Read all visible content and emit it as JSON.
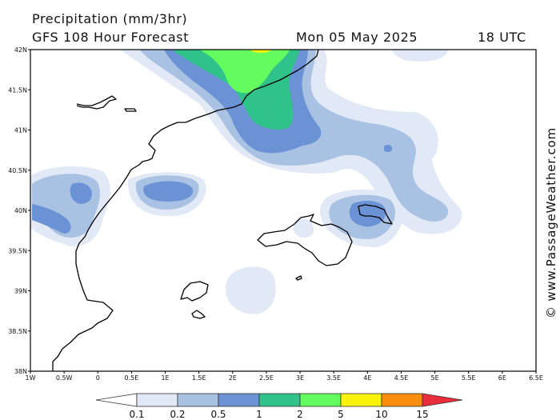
{
  "header": {
    "title": "Precipitation (mm/3hr)",
    "subtitle": "GFS 108 Hour Forecast",
    "date": "Mon 05 May 2025",
    "hour": "18 UTC"
  },
  "credit": "© www.PassageWeather.com",
  "map": {
    "lat_labels": [
      "42N",
      "41.5N",
      "41N",
      "40.5N",
      "40N",
      "39.5N",
      "39N",
      "38.5N",
      "38N"
    ],
    "lon_labels": [
      "1W",
      "0.5W",
      "0",
      "0.5E",
      "1E",
      "1.5E",
      "2E",
      "2.5E",
      "3E",
      "3.5E",
      "4E",
      "4.5E",
      "5E",
      "5.5E",
      "6E",
      "6.5E"
    ],
    "lat_range": [
      38,
      42
    ],
    "lon_range": [
      -1,
      6.5
    ]
  },
  "legend": {
    "levels": [
      "0.1",
      "0.2",
      "0.5",
      "1",
      "2",
      "5",
      "10",
      "15"
    ],
    "colors": [
      "#ffffff",
      "#e1e9f6",
      "#a9c1e2",
      "#6a92d4",
      "#2fc28a",
      "#63fb5d",
      "#f9f30a",
      "#f98d0d",
      "#e82e3a"
    ]
  }
}
